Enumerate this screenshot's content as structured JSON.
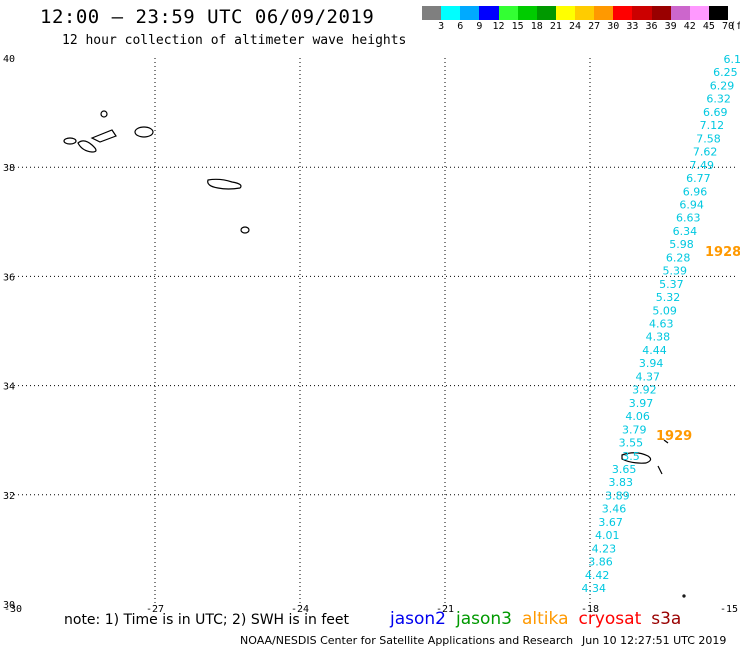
{
  "header": {
    "title": "12:00 – 23:59 UTC 06/09/2019",
    "subtitle": "12 hour collection of altimeter wave heights"
  },
  "colorbar": {
    "unit": "(ft)",
    "labels": [
      "3",
      "6",
      "9",
      "12",
      "15",
      "18",
      "21",
      "24",
      "27",
      "30",
      "33",
      "36",
      "39",
      "42",
      "45",
      "70"
    ],
    "colors": [
      "#7f7f7f",
      "#00ffff",
      "#00aaff",
      "#0000ff",
      "#33ff33",
      "#00cc00",
      "#009900",
      "#ffff00",
      "#ffcc00",
      "#ff9900",
      "#ff0000",
      "#cc0000",
      "#990000",
      "#cc66cc",
      "#ff99ff",
      "#000000"
    ]
  },
  "map": {
    "lat_labels": [
      "40",
      "38",
      "36",
      "34",
      "32",
      "30"
    ],
    "lon_labels": [
      "-30",
      "-27",
      "-24",
      "-21",
      "-18",
      "-15"
    ],
    "swh_color": "#00c8e0",
    "pass_color": "#ff9900",
    "pass_labels": [
      "1928",
      "1929"
    ],
    "swh_values": [
      "6.1",
      "6.25",
      "6.29",
      "6.32",
      "6.69",
      "7.12",
      "7.58",
      "7.62",
      "7.49",
      "6.77",
      "6.96",
      "6.94",
      "6.63",
      "6.34",
      "5.98",
      "6.28",
      "5.39",
      "5.37",
      "5.32",
      "5.09",
      "4.63",
      "4.38",
      "4.44",
      "3.94",
      "4.37",
      "3.92",
      "3.97",
      "4.06",
      "3.79",
      "3.55",
      "3.5",
      "3.65",
      "3.83",
      "3.89",
      "3.46",
      "3.67",
      "4.01",
      "4.23",
      "3.86",
      "4.42",
      "4.34"
    ]
  },
  "footer": {
    "note": "note: 1) Time is in UTC; 2) SWH is in feet",
    "satellites": [
      {
        "name": "jason2",
        "color": "#0000ee"
      },
      {
        "name": "jason3",
        "color": "#009900"
      },
      {
        "name": "altika",
        "color": "#ff9900"
      },
      {
        "name": "cryosat",
        "color": "#ff0000"
      },
      {
        "name": "s3a",
        "color": "#990000"
      }
    ],
    "credit": "NOAA/NESDIS Center for Satellite Applications and Research",
    "timestamp": "Jun 10 12:27:51 UTC 2019"
  }
}
